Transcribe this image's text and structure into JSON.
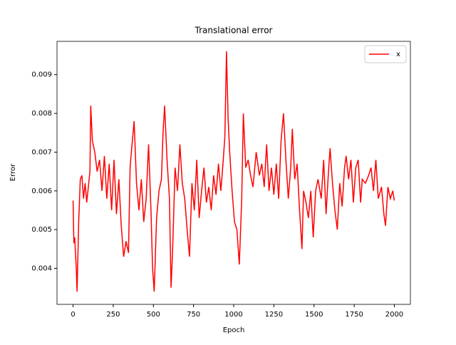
{
  "chart_data": {
    "type": "line",
    "title": "Translational error",
    "xlabel": "Epoch",
    "ylabel": "Error",
    "x": [
      0,
      5,
      10,
      20,
      25,
      35,
      45,
      55,
      65,
      75,
      85,
      95,
      105,
      110,
      120,
      135,
      150,
      165,
      180,
      195,
      210,
      225,
      240,
      255,
      270,
      285,
      300,
      315,
      330,
      345,
      355,
      365,
      380,
      395,
      410,
      425,
      440,
      455,
      470,
      485,
      495,
      505,
      520,
      535,
      550,
      560,
      570,
      585,
      600,
      610,
      620,
      635,
      650,
      665,
      680,
      695,
      710,
      725,
      740,
      755,
      770,
      785,
      800,
      815,
      830,
      845,
      860,
      875,
      890,
      905,
      920,
      935,
      945,
      955,
      965,
      975,
      990,
      1005,
      1020,
      1035,
      1050,
      1060,
      1075,
      1090,
      1105,
      1120,
      1140,
      1160,
      1175,
      1190,
      1205,
      1220,
      1235,
      1250,
      1265,
      1280,
      1295,
      1310,
      1325,
      1340,
      1355,
      1365,
      1380,
      1395,
      1410,
      1425,
      1435,
      1450,
      1465,
      1480,
      1495,
      1510,
      1525,
      1545,
      1560,
      1575,
      1590,
      1600,
      1615,
      1630,
      1645,
      1660,
      1675,
      1690,
      1700,
      1715,
      1730,
      1745,
      1760,
      1775,
      1790,
      1800,
      1820,
      1840,
      1855,
      1870,
      1885,
      1900,
      1920,
      1935,
      1945,
      1960,
      1975,
      1990,
      2000
    ],
    "series": [
      {
        "name": "x",
        "color": "#ff0000",
        "values": [
          0.00575,
          0.00465,
          0.0048,
          0.004,
          0.0034,
          0.0052,
          0.0063,
          0.0064,
          0.0058,
          0.0062,
          0.0057,
          0.0061,
          0.0065,
          0.0082,
          0.0073,
          0.007,
          0.0065,
          0.0068,
          0.006,
          0.0069,
          0.0058,
          0.0067,
          0.0055,
          0.0068,
          0.0054,
          0.0063,
          0.0051,
          0.0043,
          0.0047,
          0.0044,
          0.0066,
          0.0071,
          0.0078,
          0.0062,
          0.0055,
          0.0063,
          0.0052,
          0.0058,
          0.0072,
          0.0055,
          0.004,
          0.0034,
          0.0053,
          0.006,
          0.0063,
          0.0075,
          0.0082,
          0.0068,
          0.0058,
          0.0035,
          0.0045,
          0.0066,
          0.006,
          0.0072,
          0.0062,
          0.0058,
          0.005,
          0.0043,
          0.0062,
          0.0055,
          0.0068,
          0.0053,
          0.006,
          0.0066,
          0.0057,
          0.0061,
          0.0055,
          0.0064,
          0.0059,
          0.0067,
          0.006,
          0.0068,
          0.0074,
          0.0096,
          0.0079,
          0.007,
          0.006,
          0.0052,
          0.005,
          0.0041,
          0.0058,
          0.008,
          0.0066,
          0.0068,
          0.0064,
          0.0061,
          0.007,
          0.0064,
          0.0067,
          0.0061,
          0.0072,
          0.006,
          0.0066,
          0.0059,
          0.0067,
          0.0058,
          0.0073,
          0.008,
          0.0068,
          0.0058,
          0.0066,
          0.0076,
          0.0063,
          0.0067,
          0.0055,
          0.0045,
          0.006,
          0.0057,
          0.0053,
          0.006,
          0.0048,
          0.006,
          0.0063,
          0.0058,
          0.0068,
          0.0054,
          0.0065,
          0.0071,
          0.0062,
          0.0055,
          0.005,
          0.0062,
          0.0056,
          0.0066,
          0.0069,
          0.0063,
          0.0068,
          0.0057,
          0.0066,
          0.0068,
          0.0057,
          0.0063,
          0.0062,
          0.0064,
          0.0066,
          0.006,
          0.0068,
          0.0058,
          0.0061,
          0.0054,
          0.0051,
          0.0061,
          0.0058,
          0.006,
          0.00575
        ]
      }
    ],
    "xlim": [
      -100,
      2100
    ],
    "ylim": [
      0.00307,
      0.00986
    ],
    "xticks": [
      0,
      250,
      500,
      750,
      1000,
      1250,
      1500,
      1750,
      2000
    ],
    "yticks": [
      0.004,
      0.005,
      0.006,
      0.007,
      0.008,
      0.009
    ],
    "legend": "upper right"
  }
}
